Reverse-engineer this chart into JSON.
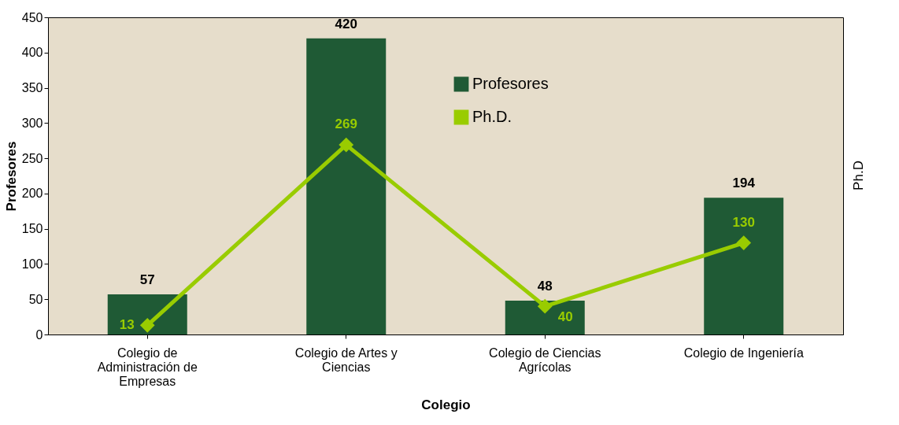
{
  "chart_data": {
    "type": "bar",
    "xlabel": "Colegio",
    "ylabel": "Profesores",
    "y2label": "Ph.D",
    "categories": [
      "Colegio de Administración de Empresas",
      "Colegio de Artes y Ciencias",
      "Colegio de Ciencias Agrícolas",
      "Colegio de Ingeniería"
    ],
    "series": [
      {
        "name": "Profesores",
        "color": "#1f5a35",
        "values": [
          57,
          420,
          48,
          194
        ]
      },
      {
        "name": "Ph.D.",
        "type": "line",
        "color": "#99cc00",
        "values": [
          13,
          269,
          40,
          130
        ],
        "marker": "diamond"
      }
    ],
    "ylim": [
      0,
      450
    ],
    "yticks": [
      0,
      50,
      100,
      150,
      200,
      250,
      300,
      350,
      400,
      450
    ],
    "data_labels": true,
    "legend": "top",
    "grid": false
  }
}
